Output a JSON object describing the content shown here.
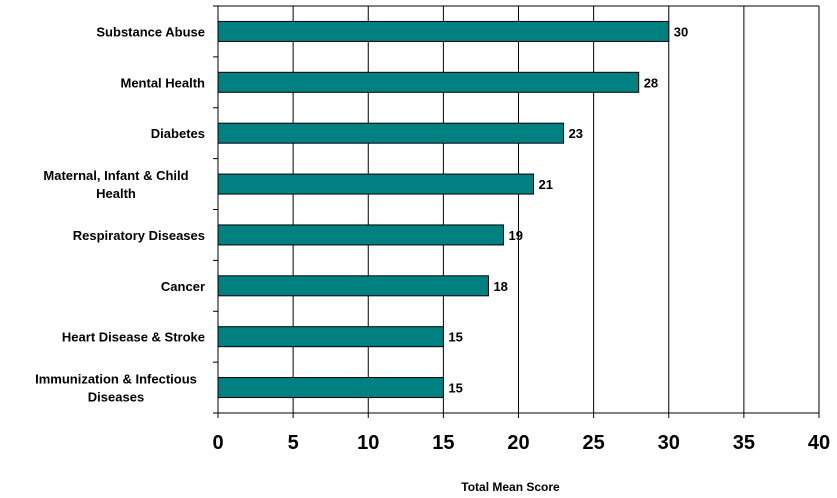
{
  "chart_data": {
    "type": "bar",
    "orientation": "horizontal",
    "categories": [
      "Substance Abuse",
      "Mental Health",
      "Diabetes",
      "Maternal, Infant & Child Health",
      "Respiratory Diseases",
      "Cancer",
      "Heart Disease & Stroke",
      "Immunization & Infectious Diseases"
    ],
    "values": [
      30,
      28,
      23,
      21,
      19,
      18,
      15,
      15
    ],
    "value_labels": [
      "30",
      "28",
      "23",
      "21",
      "19",
      "18",
      "15",
      "15"
    ],
    "xlabel": "Total Mean Score",
    "ylabel": "",
    "xlim": [
      0,
      40
    ],
    "xticks": [
      0,
      5,
      10,
      15,
      20,
      25,
      30,
      35,
      40
    ],
    "grid": "vertical",
    "bar_color": "#008080",
    "legend": "none"
  }
}
